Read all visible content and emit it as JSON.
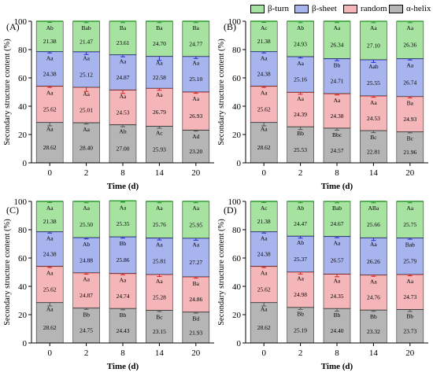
{
  "legend": [
    {
      "label": "β-turn",
      "color": "#a6e3a1"
    },
    {
      "label": "β-sheet",
      "color": "#a8b4ee"
    },
    {
      "label": "random coil",
      "color": "#f4b6b8"
    },
    {
      "label": "α-helix",
      "color": "#b5b5b5"
    }
  ],
  "colors": {
    "alpha": "#b5b5b5",
    "coil": "#f4b6b8",
    "sheet": "#a8b4ee",
    "turn": "#a6e3a1",
    "alpha_err": "#555555",
    "coil_err": "#e02020",
    "sheet_err": "#1f2fd0",
    "turn_err": "#2a9a2a"
  },
  "chart_data": [
    {
      "type": "bar",
      "panel": "(A)",
      "categories": [
        "0",
        "2",
        "8",
        "14",
        "20"
      ],
      "xlabel": "Time (d)",
      "ylabel": "Secondary structure content (%)",
      "ylim": [
        0,
        100
      ],
      "yticks": [
        0,
        20,
        40,
        60,
        80,
        100
      ],
      "series": [
        {
          "name": "α-helix",
          "values": [
            28.62,
            28.4,
            27.0,
            25.93,
            23.2
          ],
          "letters": [
            "Aa",
            "Aa",
            "Ab",
            "Ac",
            "Ad"
          ],
          "err": [
            2.5,
            1.0,
            1.5,
            1.5,
            0.8
          ]
        },
        {
          "name": "random coil",
          "values": [
            25.62,
            25.01,
            24.53,
            26.79,
            26.93
          ],
          "letters": [
            "Aa",
            "Aa",
            "Aa",
            "Aa",
            "Aa"
          ],
          "err": [
            1.0,
            3.0,
            2.5,
            1.5,
            1.0
          ]
        },
        {
          "name": "β-sheet",
          "values": [
            24.38,
            25.12,
            24.87,
            22.58,
            25.1
          ],
          "letters": [
            "Aa",
            "Aa",
            "Aa",
            "Aa",
            "Aa"
          ],
          "err": [
            1.0,
            2.0,
            1.5,
            3.0,
            1.5
          ]
        },
        {
          "name": "β-turn",
          "values": [
            21.38,
            21.47,
            23.61,
            24.7,
            24.77
          ],
          "letters": [
            "Ab",
            "Bab",
            "Ba",
            "Ba",
            "Ba"
          ],
          "err": [
            0.8,
            1.0,
            1.0,
            1.0,
            1.0
          ]
        }
      ]
    },
    {
      "type": "bar",
      "panel": "(B)",
      "categories": [
        "0",
        "2",
        "8",
        "14",
        "20"
      ],
      "xlabel": "Time (d)",
      "ylabel": "Secondary structure content (%)",
      "ylim": [
        0,
        100
      ],
      "yticks": [
        0,
        20,
        40,
        60,
        80,
        100
      ],
      "series": [
        {
          "name": "α-helix",
          "values": [
            28.62,
            25.53,
            24.57,
            22.81,
            21.96
          ],
          "letters": [
            "Aa",
            "Bb",
            "Bbc",
            "Bc",
            "Bc"
          ],
          "err": [
            2.5,
            2.0,
            1.5,
            1.5,
            0.8
          ]
        },
        {
          "name": "random coil",
          "values": [
            25.62,
            24.39,
            24.38,
            24.53,
            24.93
          ],
          "letters": [
            "Aa",
            "Aa",
            "Aa",
            "Aa",
            "Ba"
          ],
          "err": [
            1.0,
            1.5,
            1.0,
            1.0,
            1.0
          ]
        },
        {
          "name": "β-sheet",
          "values": [
            24.38,
            25.16,
            24.71,
            25.55,
            26.74
          ],
          "letters": [
            "Aa",
            "Aa",
            "Bb",
            "Aab",
            "Aa"
          ],
          "err": [
            1.0,
            1.0,
            1.5,
            2.0,
            1.0
          ]
        },
        {
          "name": "β-turn",
          "values": [
            21.38,
            24.93,
            26.34,
            27.1,
            26.36
          ],
          "letters": [
            "Ac",
            "Ab",
            "Aa",
            "Aa",
            "Aa"
          ],
          "err": [
            0.8,
            1.0,
            1.0,
            1.0,
            1.0
          ]
        }
      ]
    },
    {
      "type": "bar",
      "panel": "(C)",
      "categories": [
        "0",
        "2",
        "8",
        "14",
        "20"
      ],
      "xlabel": "Time (d)",
      "ylabel": "Secondary structure content (%)",
      "ylim": [
        0,
        100
      ],
      "yticks": [
        0,
        20,
        40,
        60,
        80,
        100
      ],
      "series": [
        {
          "name": "α-helix",
          "values": [
            28.62,
            24.75,
            24.43,
            23.15,
            21.93
          ],
          "letters": [
            "Aa",
            "Bb",
            "Bb",
            "Bc",
            "Bd"
          ],
          "err": [
            2.5,
            1.0,
            1.0,
            1.0,
            0.8
          ]
        },
        {
          "name": "random coil",
          "values": [
            25.62,
            24.87,
            24.74,
            25.28,
            24.86
          ],
          "letters": [
            "Aa",
            "Aa",
            "Aa",
            "Aa",
            "Ba"
          ],
          "err": [
            1.0,
            1.0,
            1.0,
            1.5,
            1.0
          ]
        },
        {
          "name": "β-sheet",
          "values": [
            24.38,
            24.88,
            25.86,
            25.81,
            27.27
          ],
          "letters": [
            "Aa",
            "Ab",
            "Bb",
            "Aa",
            "Aa"
          ],
          "err": [
            1.0,
            1.0,
            1.0,
            1.5,
            1.5
          ]
        },
        {
          "name": "β-turn",
          "values": [
            21.38,
            25.5,
            25.35,
            25.76,
            25.95
          ],
          "letters": [
            "Aa",
            "Aa",
            "Aa",
            "Aa",
            "Aa"
          ],
          "err": [
            0.8,
            1.0,
            1.0,
            1.0,
            1.0
          ]
        }
      ]
    },
    {
      "type": "bar",
      "panel": "(D)",
      "categories": [
        "0",
        "2",
        "8",
        "14",
        "20"
      ],
      "xlabel": "Time (d)",
      "ylabel": "Secondary structure content (%)",
      "ylim": [
        0,
        100
      ],
      "yticks": [
        0,
        20,
        40,
        60,
        80,
        100
      ],
      "series": [
        {
          "name": "α-helix",
          "values": [
            28.62,
            25.19,
            24.4,
            23.32,
            23.73
          ],
          "letters": [
            "Aa",
            "Bb",
            "Bb",
            "Bb",
            "Bb"
          ],
          "err": [
            2.5,
            1.5,
            2.0,
            1.0,
            1.5
          ]
        },
        {
          "name": "random coil",
          "values": [
            25.62,
            24.98,
            24.35,
            24.76,
            24.73
          ],
          "letters": [
            "Aa",
            "Aa",
            "Aa",
            "Aa",
            "Aa"
          ],
          "err": [
            1.0,
            1.5,
            2.0,
            1.0,
            1.0
          ]
        },
        {
          "name": "β-sheet",
          "values": [
            24.38,
            25.37,
            26.57,
            26.26,
            25.79
          ],
          "letters": [
            "Aa",
            "Ab",
            "Aa",
            "Aa",
            "Bab"
          ],
          "err": [
            1.0,
            1.5,
            1.0,
            2.0,
            1.0
          ]
        },
        {
          "name": "β-turn",
          "values": [
            21.38,
            24.47,
            24.67,
            25.66,
            25.75
          ],
          "letters": [
            "Ac",
            "Ab",
            "Bab",
            "ABa",
            "Aa"
          ],
          "err": [
            0.8,
            1.0,
            1.0,
            1.0,
            1.0
          ]
        }
      ]
    }
  ]
}
